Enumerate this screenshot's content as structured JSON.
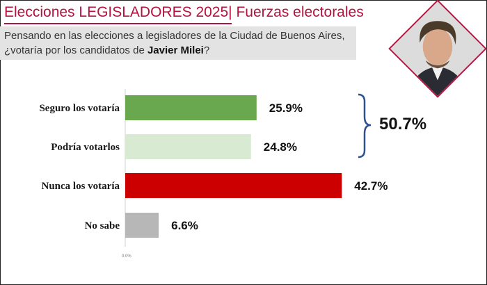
{
  "header": {
    "title": "Elecciones LEGISLADORES 2025| Fuerzas electorales",
    "question_part1": "Pensando en las elecciones a legisladores de la Ciudad de Buenos Aires,",
    "question_part2": "¿votaría por los candidatos de ",
    "question_bold": "Javier Milei",
    "question_end": "?"
  },
  "colors": {
    "accent": "#b5123f",
    "bar_seguro": "#6aa84f",
    "bar_podria": "#d9ead3",
    "bar_nunca": "#cc0000",
    "bar_nosabe": "#b7b7b7",
    "bracket": "#2f4f8f"
  },
  "annotation": {
    "sum_label": "50.7%"
  },
  "chart_data": {
    "type": "bar",
    "orientation": "horizontal",
    "categories": [
      "Seguro los votaría",
      "Podría votarlos",
      "Nunca los votaría",
      "No sabe"
    ],
    "values": [
      25.9,
      24.8,
      42.7,
      6.6
    ],
    "value_labels": [
      "25.9%",
      "24.8%",
      "42.7%",
      "6.6%"
    ],
    "xlim": [
      0,
      53.5
    ],
    "x_tick_label": "0.0%",
    "grid": false,
    "legend": "none"
  },
  "portrait": {
    "icon": "person-portrait-icon"
  }
}
